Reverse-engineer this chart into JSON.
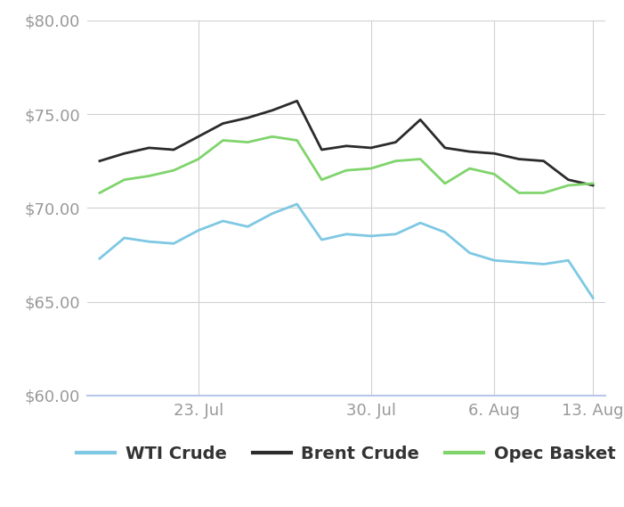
{
  "wti": [
    67.3,
    68.4,
    68.2,
    68.1,
    68.8,
    69.3,
    69.0,
    69.7,
    70.2,
    68.3,
    68.6,
    68.5,
    68.6,
    69.2,
    68.7,
    67.6,
    67.2,
    67.1,
    67.0,
    67.2,
    65.2
  ],
  "brent": [
    72.5,
    72.9,
    73.2,
    73.1,
    73.8,
    74.5,
    74.8,
    75.2,
    75.7,
    73.1,
    73.3,
    73.2,
    73.5,
    74.7,
    73.2,
    73.0,
    72.9,
    72.6,
    72.5,
    71.5,
    71.2
  ],
  "opec": [
    70.8,
    71.5,
    71.7,
    72.0,
    72.6,
    73.6,
    73.5,
    73.8,
    73.6,
    71.5,
    72.0,
    72.1,
    72.5,
    72.6,
    71.3,
    72.1,
    71.8,
    70.8,
    70.8,
    71.2,
    71.3
  ],
  "wti_color": "#7EC8E3",
  "brent_color": "#2b2b2b",
  "opec_color": "#7FD46C",
  "background_color": "#ffffff",
  "grid_color": "#d0d0d0",
  "xaxis_color": "#b8c8e8",
  "tick_label_color": "#999999",
  "legend_label_color": "#333333",
  "ylim": [
    60.0,
    80.0
  ],
  "yticks": [
    60.0,
    65.0,
    70.0,
    75.0,
    80.0
  ],
  "xtick_positions": [
    4,
    11,
    16,
    20
  ],
  "xtick_labels": [
    "23. Jul",
    "30. Jul",
    "6. Aug",
    "13. Aug"
  ],
  "legend_labels": [
    "WTI Crude",
    "Brent Crude",
    "Opec Basket"
  ],
  "line_width": 2.0,
  "tick_fontsize": 13,
  "legend_fontsize": 14
}
